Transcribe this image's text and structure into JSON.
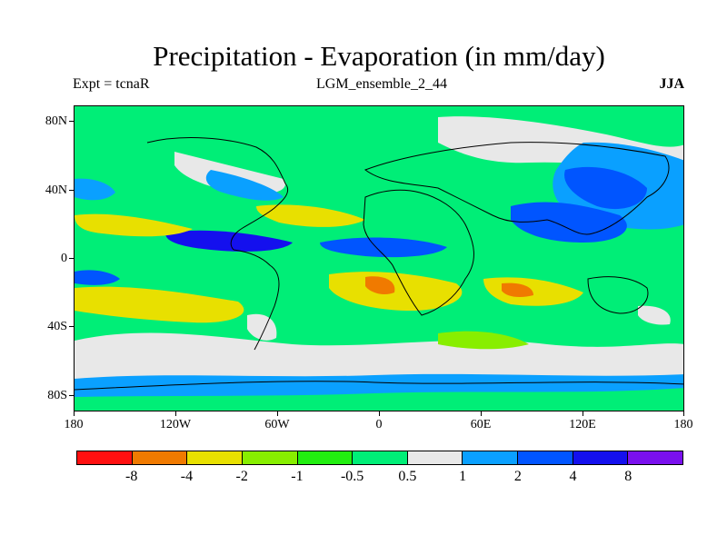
{
  "title": "Precipitation - Evaporation (in mm/day)",
  "experiment": "Expt = tcnaR",
  "run": "LGM_ensemble_2_44",
  "season": "JJA",
  "lat_labels": [
    "80N",
    "40N",
    "0",
    "40S",
    "80S"
  ],
  "lon_labels": [
    "180",
    "120W",
    "60W",
    "0",
    "60E",
    "120E",
    "180"
  ],
  "colorbar": {
    "colors": [
      "#ff1010",
      "#f07a00",
      "#e8e000",
      "#88ee00",
      "#22ee10",
      "#00ee77",
      "#e8e8e8",
      "#0aa0ff",
      "#0055ff",
      "#1410ee",
      "#7a10ee"
    ],
    "labels": [
      "-8",
      "-4",
      "-2",
      "-1",
      "-0.5",
      "0.5",
      "1",
      "2",
      "4",
      "8"
    ]
  },
  "colors": {
    "ocean_base": "#00ee77",
    "coastline": "#000000"
  }
}
